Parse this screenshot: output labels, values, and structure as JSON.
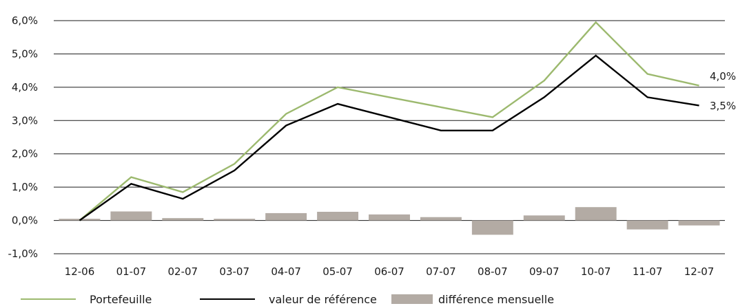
{
  "chart_data": {
    "type": "line",
    "categories": [
      "12-06",
      "01-07",
      "02-07",
      "03-07",
      "04-07",
      "05-07",
      "06-07",
      "07-07",
      "08-07",
      "09-07",
      "10-07",
      "11-07",
      "12-07"
    ],
    "y_ticks": [
      "-1,0%",
      "0,0%",
      "1,0%",
      "2,0%",
      "3,0%",
      "4,0%",
      "5,0%",
      "6,0%"
    ],
    "ylim": [
      -1,
      6
    ],
    "grid": true,
    "legend_position": "bottom",
    "series": [
      {
        "name": "Portefeuille",
        "kind": "line",
        "color": "#9cb96e",
        "values": [
          0.0,
          1.3,
          0.85,
          1.7,
          3.2,
          4.0,
          3.7,
          3.4,
          3.1,
          4.2,
          5.95,
          4.4,
          4.05
        ]
      },
      {
        "name": "valeur de référence",
        "kind": "line",
        "color": "#000000",
        "values": [
          0.0,
          1.1,
          0.65,
          1.5,
          2.85,
          3.5,
          3.1,
          2.7,
          2.7,
          3.7,
          4.95,
          3.7,
          3.45
        ]
      },
      {
        "name": "différence mensuelle",
        "kind": "bar",
        "color": "#b3aba4",
        "values": [
          0.05,
          0.27,
          0.07,
          0.05,
          0.22,
          0.26,
          0.18,
          0.1,
          -0.43,
          0.15,
          0.4,
          -0.27,
          -0.15
        ]
      }
    ],
    "end_labels": [
      "4,0%",
      "3,5%"
    ]
  }
}
